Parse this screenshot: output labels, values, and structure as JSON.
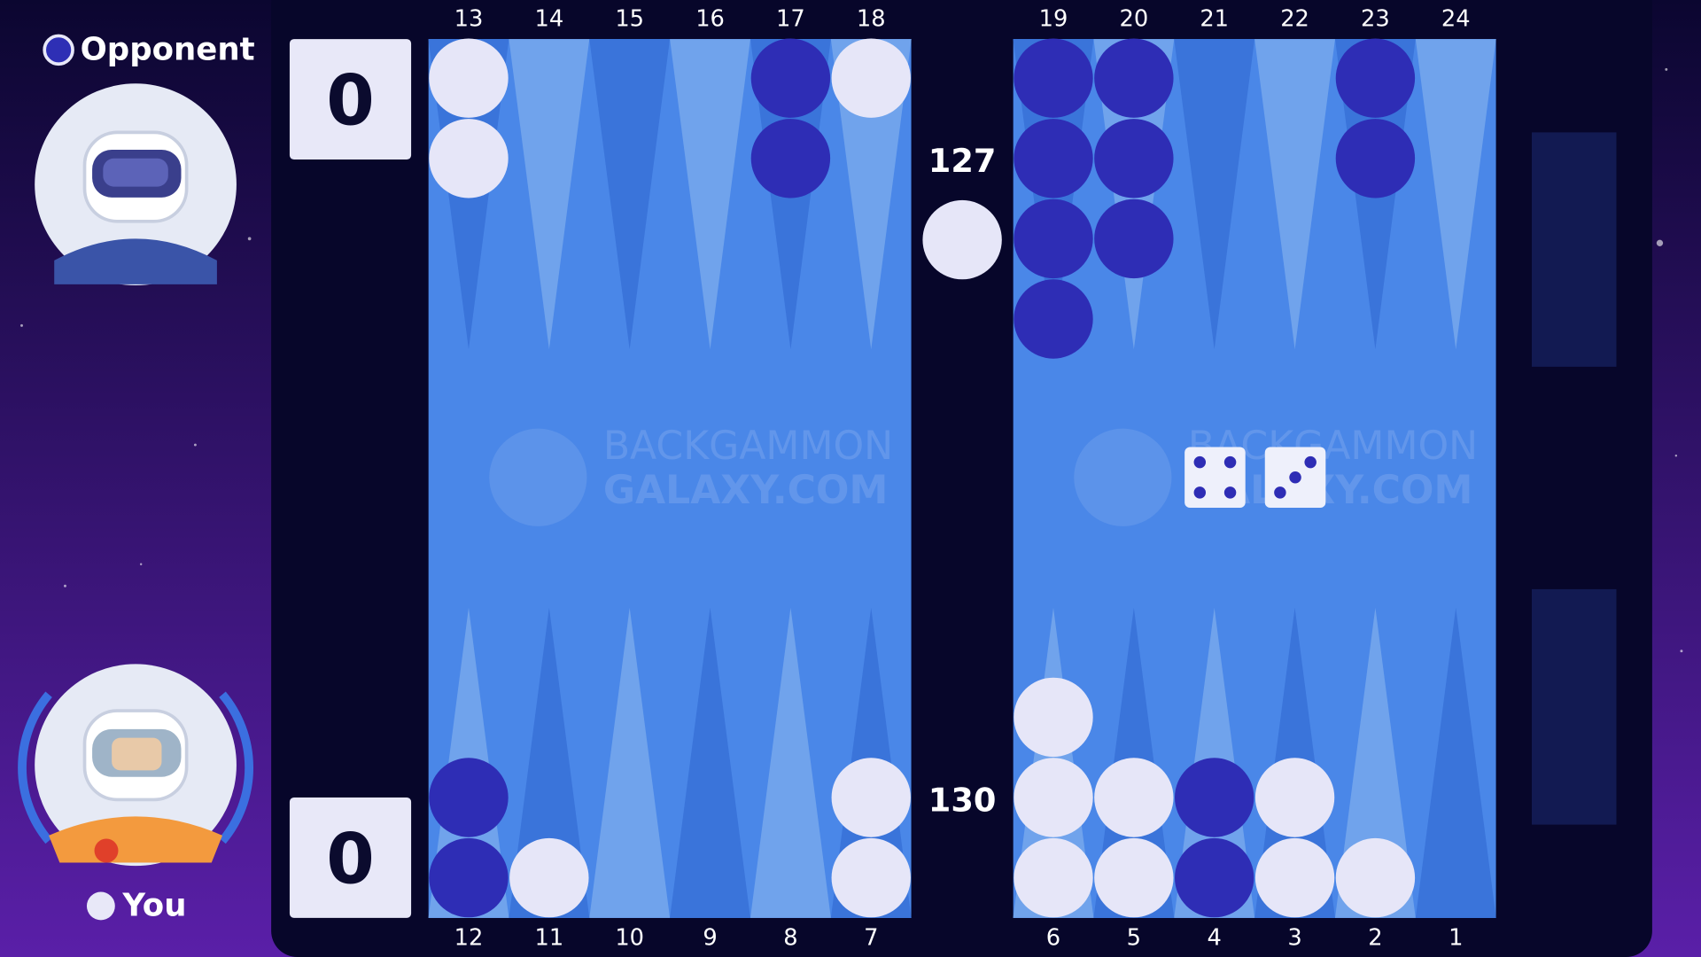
{
  "players": {
    "opponent": {
      "name": "Opponent",
      "score": 0,
      "pips": 127
    },
    "you": {
      "name": "You",
      "score": 0,
      "pips": 130
    }
  },
  "points": [
    {
      "number": 1,
      "checkers": 0
    },
    {
      "number": 2,
      "player": "you",
      "checkers": 1
    },
    {
      "number": 3,
      "player": "you",
      "checkers": 2
    },
    {
      "number": 4,
      "player": "opponent",
      "checkers": 2
    },
    {
      "number": 5,
      "player": "you",
      "checkers": 2
    },
    {
      "number": 6,
      "player": "you",
      "checkers": 3
    },
    {
      "number": 7,
      "player": "you",
      "checkers": 2
    },
    {
      "number": 8,
      "checkers": 0
    },
    {
      "number": 9,
      "checkers": 0
    },
    {
      "number": 10,
      "checkers": 0
    },
    {
      "number": 11,
      "player": "you",
      "checkers": 1
    },
    {
      "number": 12,
      "player": "opponent",
      "checkers": 2
    },
    {
      "number": 13,
      "player": "you",
      "checkers": 2
    },
    {
      "number": 14,
      "checkers": 0
    },
    {
      "number": 15,
      "checkers": 0
    },
    {
      "number": 16,
      "checkers": 0
    },
    {
      "number": 17,
      "player": "opponent",
      "checkers": 2
    },
    {
      "number": 18,
      "player": "you",
      "checkers": 1
    },
    {
      "number": 19,
      "player": "opponent",
      "checkers": 4
    },
    {
      "number": 20,
      "player": "opponent",
      "checkers": 3
    },
    {
      "number": 21,
      "checkers": 0
    },
    {
      "number": 22,
      "checkers": 0
    },
    {
      "number": 23,
      "player": "opponent",
      "checkers": 2
    },
    {
      "number": 24,
      "checkers": 0
    }
  ],
  "bar": {
    "you": 1
  },
  "dice": [
    4,
    3
  ],
  "watermark": {
    "line1": "BACKGAMMON",
    "line2": "GALAXY.COM"
  }
}
